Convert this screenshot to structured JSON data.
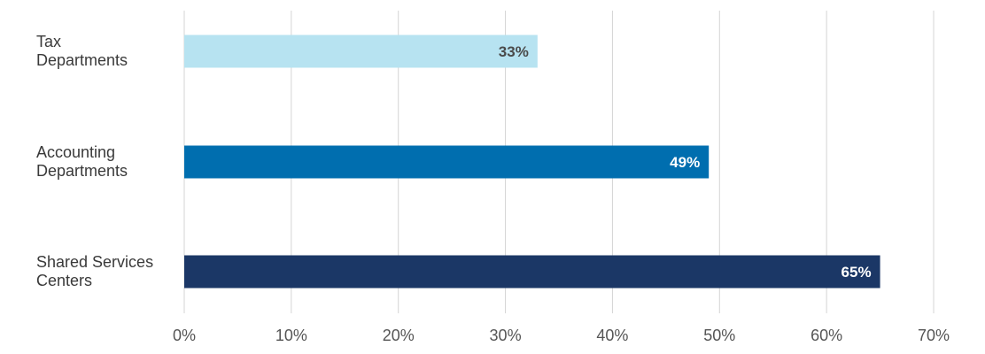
{
  "chart_data": {
    "type": "bar",
    "orientation": "horizontal",
    "categories": [
      [
        "Tax",
        "Departments"
      ],
      [
        "Accounting",
        "Departments"
      ],
      [
        "Shared Services",
        "Centers"
      ]
    ],
    "values": [
      33,
      49,
      65
    ],
    "data_labels": [
      "33%",
      "49%",
      "65%"
    ],
    "bar_colors": [
      "#b7e3f1",
      "#006eaf",
      "#1b3766"
    ],
    "label_colors": [
      "#4a4a4a",
      "#ffffff",
      "#ffffff"
    ],
    "xlim": [
      0,
      70
    ],
    "x_ticks": [
      0,
      10,
      20,
      30,
      40,
      50,
      60,
      70
    ],
    "x_tick_labels": [
      "0%",
      "10%",
      "20%",
      "30%",
      "40%",
      "50%",
      "60%",
      "70%"
    ],
    "grid": true,
    "title": "",
    "xlabel": "",
    "ylabel": ""
  }
}
